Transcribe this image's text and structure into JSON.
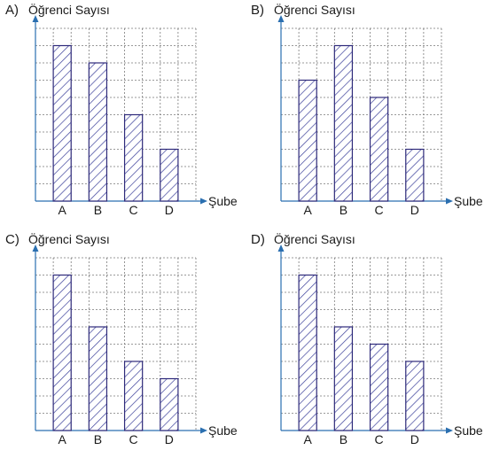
{
  "colors": {
    "bar_stroke": "#2e2a7a",
    "hatch": "#3a3f9a",
    "bar_fill": "#ffffff",
    "grid": "#7a7a7a",
    "axis": "#2a6fb0",
    "text": "#1a1a1a"
  },
  "charts": [
    {
      "option": "A)",
      "ylabel": "Öğrenci Sayısı",
      "xlabel": "Şube"
    },
    {
      "option": "B)",
      "ylabel": "Öğrenci Sayısı",
      "xlabel": "Şube"
    },
    {
      "option": "C)",
      "ylabel": "Öğrenci Sayısı",
      "xlabel": "Şube"
    },
    {
      "option": "D)",
      "ylabel": "Öğrenci Sayısı",
      "xlabel": "Şube"
    }
  ],
  "chart_data": [
    {
      "type": "bar",
      "title": "",
      "xlabel": "Şube",
      "ylabel": "Öğrenci Sayısı",
      "categories": [
        "A",
        "B",
        "C",
        "D"
      ],
      "values": [
        9,
        8,
        5,
        3
      ],
      "ylim": [
        0,
        10
      ],
      "grid": true
    },
    {
      "type": "bar",
      "title": "",
      "xlabel": "Şube",
      "ylabel": "Öğrenci Sayısı",
      "categories": [
        "A",
        "B",
        "C",
        "D"
      ],
      "values": [
        7,
        9,
        6,
        3
      ],
      "ylim": [
        0,
        10
      ],
      "grid": true
    },
    {
      "type": "bar",
      "title": "",
      "xlabel": "Şube",
      "ylabel": "Öğrenci Sayısı",
      "categories": [
        "A",
        "B",
        "C",
        "D"
      ],
      "values": [
        9,
        6,
        4,
        3
      ],
      "ylim": [
        0,
        10
      ],
      "grid": true
    },
    {
      "type": "bar",
      "title": "",
      "xlabel": "Şube",
      "ylabel": "Öğrenci Sayısı",
      "categories": [
        "A",
        "B",
        "C",
        "D"
      ],
      "values": [
        9,
        6,
        5,
        4
      ],
      "ylim": [
        0,
        10
      ],
      "grid": true
    }
  ]
}
